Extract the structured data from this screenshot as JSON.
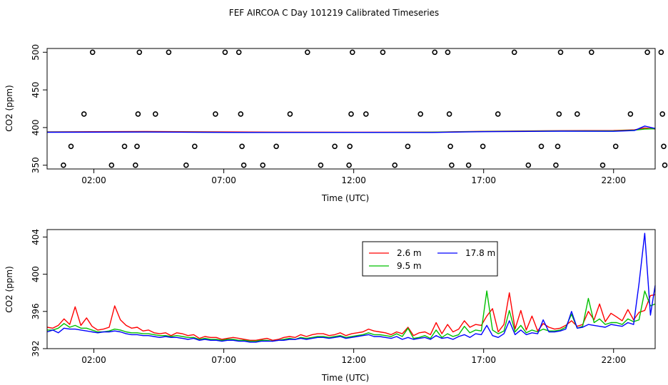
{
  "title": "FEF AIRCOA C  Day 101219  Calibrated Timeseries",
  "colors": {
    "s1": "#ff0000",
    "s2": "#00c000",
    "s3": "#0000ff",
    "axis": "#000000"
  },
  "chart_data": [
    {
      "type": "scatter+line",
      "xlabel": "Time (UTC)",
      "ylabel": "CO2 (ppm)",
      "x_unit": "hours UTC",
      "xlim": [
        0.2,
        23.6
      ],
      "ylim": [
        345,
        505
      ],
      "xticks": [
        2,
        7,
        12,
        17,
        22
      ],
      "xtick_labels": [
        "02:00",
        "07:00",
        "12:00",
        "17:00",
        "22:00"
      ],
      "yticks": [
        350,
        400,
        450,
        500
      ],
      "ytick_labels": [
        "350",
        "400",
        "450",
        "500"
      ],
      "points": [
        [
          0.83,
          350
        ],
        [
          1.12,
          375
        ],
        [
          1.62,
          418
        ],
        [
          1.95,
          500
        ],
        [
          2.68,
          350
        ],
        [
          3.18,
          375
        ],
        [
          3.6,
          350
        ],
        [
          3.66,
          375
        ],
        [
          3.7,
          418
        ],
        [
          3.75,
          500
        ],
        [
          4.37,
          418
        ],
        [
          4.88,
          500
        ],
        [
          5.55,
          350
        ],
        [
          5.88,
          375
        ],
        [
          6.68,
          418
        ],
        [
          7.05,
          500
        ],
        [
          7.58,
          500
        ],
        [
          7.65,
          418
        ],
        [
          7.7,
          375
        ],
        [
          7.77,
          350
        ],
        [
          8.5,
          350
        ],
        [
          9.02,
          375
        ],
        [
          9.55,
          418
        ],
        [
          10.22,
          500
        ],
        [
          10.73,
          350
        ],
        [
          11.27,
          375
        ],
        [
          11.85,
          375
        ],
        [
          11.82,
          350
        ],
        [
          11.9,
          418
        ],
        [
          11.95,
          500
        ],
        [
          12.47,
          418
        ],
        [
          13.12,
          500
        ],
        [
          13.58,
          350
        ],
        [
          14.08,
          375
        ],
        [
          14.57,
          418
        ],
        [
          15.12,
          500
        ],
        [
          15.62,
          500
        ],
        [
          15.68,
          418
        ],
        [
          15.72,
          375
        ],
        [
          15.77,
          350
        ],
        [
          16.42,
          350
        ],
        [
          16.97,
          375
        ],
        [
          17.55,
          418
        ],
        [
          18.18,
          500
        ],
        [
          18.72,
          350
        ],
        [
          19.22,
          375
        ],
        [
          19.78,
          350
        ],
        [
          19.85,
          375
        ],
        [
          19.9,
          418
        ],
        [
          19.96,
          500
        ],
        [
          20.6,
          418
        ],
        [
          21.15,
          500
        ],
        [
          21.58,
          350
        ],
        [
          22.08,
          375
        ],
        [
          22.65,
          418
        ],
        [
          23.3,
          500
        ],
        [
          23.83,
          500
        ],
        [
          23.88,
          418
        ],
        [
          23.93,
          375
        ],
        [
          23.97,
          350
        ]
      ],
      "series": [
        {
          "name": "2.6 m",
          "x": [
            0.2,
            4,
            8,
            12,
            15,
            17,
            20,
            22,
            22.8,
            23.2,
            23.6
          ],
          "values": [
            394.3,
            394.7,
            394.0,
            393.8,
            393.9,
            395.0,
            395.8,
            396.0,
            397.0,
            399.5,
            398.0
          ]
        },
        {
          "name": "9.5 m",
          "x": [
            0.2,
            4,
            8,
            12,
            15,
            17,
            20,
            22,
            22.8,
            23.2,
            23.6
          ],
          "values": [
            394.0,
            394.1,
            393.5,
            393.5,
            393.8,
            394.8,
            395.5,
            395.5,
            396.5,
            398.0,
            398.5
          ]
        },
        {
          "name": "17.8 m",
          "x": [
            0.2,
            4,
            8,
            12,
            15,
            17,
            20,
            22,
            22.8,
            23.2,
            23.6
          ],
          "values": [
            393.8,
            394.0,
            393.5,
            393.6,
            393.5,
            394.5,
            395.2,
            395.0,
            396.0,
            402.0,
            398.8
          ]
        }
      ]
    },
    {
      "type": "line",
      "xlabel": "Time (UTC)",
      "ylabel": "CO2 (ppm)",
      "x_unit": "hours UTC",
      "xlim": [
        0.2,
        23.6
      ],
      "ylim": [
        392,
        404.8
      ],
      "xticks": [
        2,
        7,
        12,
        17,
        22
      ],
      "xtick_labels": [
        "02:00",
        "07:00",
        "12:00",
        "17:00",
        "22:00"
      ],
      "yticks": [
        392,
        396,
        400,
        404
      ],
      "ytick_labels": [
        "392",
        "396",
        "400",
        "404"
      ],
      "legend": {
        "position": "top-right",
        "entries": [
          "2.6 m",
          "17.8 m",
          "9.5 m"
        ]
      },
      "series": [
        {
          "name": "2.6 m",
          "x": [
            0.2,
            0.42,
            0.63,
            0.85,
            1.07,
            1.28,
            1.5,
            1.72,
            1.93,
            2.15,
            2.37,
            2.59,
            2.8,
            3.02,
            3.24,
            3.45,
            3.67,
            3.89,
            4.1,
            4.32,
            4.54,
            4.76,
            4.97,
            5.19,
            5.41,
            5.62,
            5.84,
            6.06,
            6.27,
            6.49,
            6.71,
            6.93,
            7.14,
            7.36,
            7.58,
            7.79,
            8.01,
            8.23,
            8.44,
            8.66,
            8.88,
            9.1,
            9.31,
            9.53,
            9.75,
            9.96,
            10.18,
            10.4,
            10.61,
            10.83,
            11.05,
            11.27,
            11.48,
            11.7,
            11.92,
            12.13,
            12.35,
            12.57,
            12.78,
            13.0,
            13.22,
            13.44,
            13.65,
            13.87,
            14.09,
            14.3,
            14.52,
            14.74,
            14.95,
            15.17,
            15.39,
            15.61,
            15.82,
            16.04,
            16.26,
            16.47,
            16.69,
            16.91,
            17.12,
            17.34,
            17.56,
            17.78,
            17.99,
            18.21,
            18.43,
            18.64,
            18.86,
            19.08,
            19.29,
            19.51,
            19.73,
            19.95,
            20.16,
            20.38,
            20.6,
            20.81,
            21.03,
            21.25,
            21.46,
            21.68,
            21.9,
            22.12,
            22.33,
            22.55,
            22.77,
            22.98,
            23.2,
            23.42,
            23.6
          ],
          "values": [
            394.3,
            394.2,
            394.5,
            395.2,
            394.6,
            396.5,
            394.5,
            395.3,
            394.4,
            394.0,
            394.1,
            394.3,
            396.6,
            395.1,
            394.5,
            394.2,
            394.3,
            393.9,
            394.0,
            393.7,
            393.6,
            393.7,
            393.4,
            393.7,
            393.6,
            393.4,
            393.5,
            393.1,
            393.3,
            393.2,
            393.2,
            393.0,
            393.1,
            393.2,
            393.1,
            393.0,
            392.9,
            392.9,
            393.0,
            393.1,
            392.9,
            393.0,
            393.2,
            393.3,
            393.2,
            393.5,
            393.3,
            393.5,
            393.6,
            393.6,
            393.4,
            393.5,
            393.7,
            393.4,
            393.6,
            393.7,
            393.8,
            394.1,
            393.9,
            393.8,
            393.7,
            393.5,
            393.8,
            393.6,
            394.3,
            393.4,
            393.7,
            393.8,
            393.5,
            394.8,
            393.6,
            394.6,
            393.8,
            394.1,
            395.0,
            394.3,
            394.6,
            394.5,
            395.5,
            396.3,
            393.8,
            394.6,
            398.0,
            394.1,
            396.1,
            394.0,
            395.5,
            393.9,
            394.7,
            394.3,
            394.1,
            394.2,
            394.5,
            395.0,
            394.4,
            394.6,
            396.0,
            395.1,
            396.8,
            394.9,
            395.8,
            395.4,
            395.0,
            396.2,
            395.1,
            395.9,
            396.1,
            397.7,
            397.8
          ]
        },
        {
          "name": "9.5 m",
          "x": [
            0.2,
            0.42,
            0.63,
            0.85,
            1.07,
            1.28,
            1.5,
            1.72,
            1.93,
            2.15,
            2.37,
            2.59,
            2.8,
            3.02,
            3.24,
            3.45,
            3.67,
            3.89,
            4.1,
            4.32,
            4.54,
            4.76,
            4.97,
            5.19,
            5.41,
            5.62,
            5.84,
            6.06,
            6.27,
            6.49,
            6.71,
            6.93,
            7.14,
            7.36,
            7.58,
            7.79,
            8.01,
            8.23,
            8.44,
            8.66,
            8.88,
            9.1,
            9.31,
            9.53,
            9.75,
            9.96,
            10.18,
            10.4,
            10.61,
            10.83,
            11.05,
            11.27,
            11.48,
            11.7,
            11.92,
            12.13,
            12.35,
            12.57,
            12.78,
            13.0,
            13.22,
            13.44,
            13.65,
            13.87,
            14.09,
            14.3,
            14.52,
            14.74,
            14.95,
            15.17,
            15.39,
            15.61,
            15.82,
            16.04,
            16.26,
            16.47,
            16.69,
            16.91,
            17.12,
            17.34,
            17.56,
            17.78,
            17.99,
            18.21,
            18.43,
            18.64,
            18.86,
            19.08,
            19.29,
            19.51,
            19.73,
            19.95,
            20.16,
            20.38,
            20.6,
            20.81,
            21.03,
            21.25,
            21.46,
            21.68,
            21.9,
            22.12,
            22.33,
            22.55,
            22.77,
            22.98,
            23.2,
            23.42,
            23.6
          ],
          "values": [
            394.0,
            394.0,
            394.2,
            394.7,
            394.3,
            394.5,
            394.2,
            394.2,
            394.0,
            393.8,
            393.8,
            393.9,
            394.1,
            394.0,
            393.8,
            393.7,
            393.7,
            393.6,
            393.6,
            393.5,
            393.4,
            393.4,
            393.3,
            393.4,
            393.3,
            393.2,
            393.2,
            393.0,
            393.1,
            393.0,
            393.0,
            392.9,
            393.0,
            393.0,
            392.9,
            392.9,
            392.8,
            392.8,
            392.9,
            392.9,
            392.8,
            392.9,
            393.0,
            393.1,
            393.0,
            393.2,
            393.1,
            393.2,
            393.3,
            393.3,
            393.2,
            393.3,
            393.4,
            393.2,
            393.3,
            393.4,
            393.5,
            393.7,
            393.5,
            393.5,
            393.4,
            393.3,
            393.6,
            393.3,
            394.2,
            393.1,
            393.2,
            393.4,
            393.1,
            394.0,
            393.2,
            393.6,
            393.3,
            393.5,
            394.4,
            393.7,
            394.0,
            393.9,
            398.2,
            394.0,
            393.6,
            393.9,
            396.1,
            393.8,
            394.5,
            393.7,
            394.0,
            393.8,
            394.1,
            393.9,
            393.9,
            394.0,
            394.3,
            395.7,
            394.2,
            394.4,
            397.4,
            394.8,
            395.2,
            394.6,
            394.8,
            394.8,
            394.6,
            395.2,
            394.9,
            395.1,
            398.2,
            396.6,
            396.8
          ]
        },
        {
          "name": "17.8 m",
          "x": [
            0.2,
            0.42,
            0.63,
            0.85,
            1.07,
            1.28,
            1.5,
            1.72,
            1.93,
            2.15,
            2.37,
            2.59,
            2.8,
            3.02,
            3.24,
            3.45,
            3.67,
            3.89,
            4.1,
            4.32,
            4.54,
            4.76,
            4.97,
            5.19,
            5.41,
            5.62,
            5.84,
            6.06,
            6.27,
            6.49,
            6.71,
            6.93,
            7.14,
            7.36,
            7.58,
            7.79,
            8.01,
            8.23,
            8.44,
            8.66,
            8.88,
            9.1,
            9.31,
            9.53,
            9.75,
            9.96,
            10.18,
            10.4,
            10.61,
            10.83,
            11.05,
            11.27,
            11.48,
            11.7,
            11.92,
            12.13,
            12.35,
            12.57,
            12.78,
            13.0,
            13.22,
            13.44,
            13.65,
            13.87,
            14.09,
            14.3,
            14.52,
            14.74,
            14.95,
            15.17,
            15.39,
            15.61,
            15.82,
            16.04,
            16.26,
            16.47,
            16.69,
            16.91,
            17.12,
            17.34,
            17.56,
            17.78,
            17.99,
            18.21,
            18.43,
            18.64,
            18.86,
            19.08,
            19.29,
            19.51,
            19.73,
            19.95,
            20.16,
            20.38,
            20.6,
            20.81,
            21.03,
            21.25,
            21.46,
            21.68,
            21.9,
            22.12,
            22.33,
            22.55,
            22.77,
            22.98,
            23.2,
            23.42,
            23.6
          ],
          "values": [
            393.8,
            394.0,
            393.7,
            394.2,
            394.1,
            394.1,
            394.0,
            393.9,
            393.8,
            393.7,
            393.8,
            393.8,
            393.9,
            393.8,
            393.6,
            393.5,
            393.5,
            393.4,
            393.4,
            393.3,
            393.2,
            393.3,
            393.2,
            393.2,
            393.1,
            393.0,
            393.1,
            392.9,
            393.0,
            392.9,
            392.9,
            392.8,
            392.9,
            392.9,
            392.8,
            392.8,
            392.7,
            392.7,
            392.8,
            392.8,
            392.8,
            392.9,
            392.9,
            393.0,
            393.0,
            393.1,
            393.0,
            393.1,
            393.2,
            393.2,
            393.1,
            393.2,
            393.3,
            393.1,
            393.2,
            393.3,
            393.4,
            393.5,
            393.3,
            393.3,
            393.2,
            393.1,
            393.3,
            393.0,
            393.2,
            393.0,
            393.1,
            393.2,
            393.0,
            393.4,
            393.1,
            393.2,
            393.0,
            393.3,
            393.5,
            393.2,
            393.6,
            393.5,
            394.5,
            393.4,
            393.2,
            393.6,
            395.0,
            393.5,
            394.0,
            393.5,
            393.7,
            393.6,
            395.1,
            393.8,
            393.8,
            393.9,
            394.1,
            396.0,
            394.2,
            394.3,
            394.6,
            394.5,
            394.4,
            394.3,
            394.6,
            394.5,
            394.4,
            394.8,
            394.6,
            399.0,
            404.4,
            395.6,
            398.8
          ]
        }
      ]
    }
  ]
}
